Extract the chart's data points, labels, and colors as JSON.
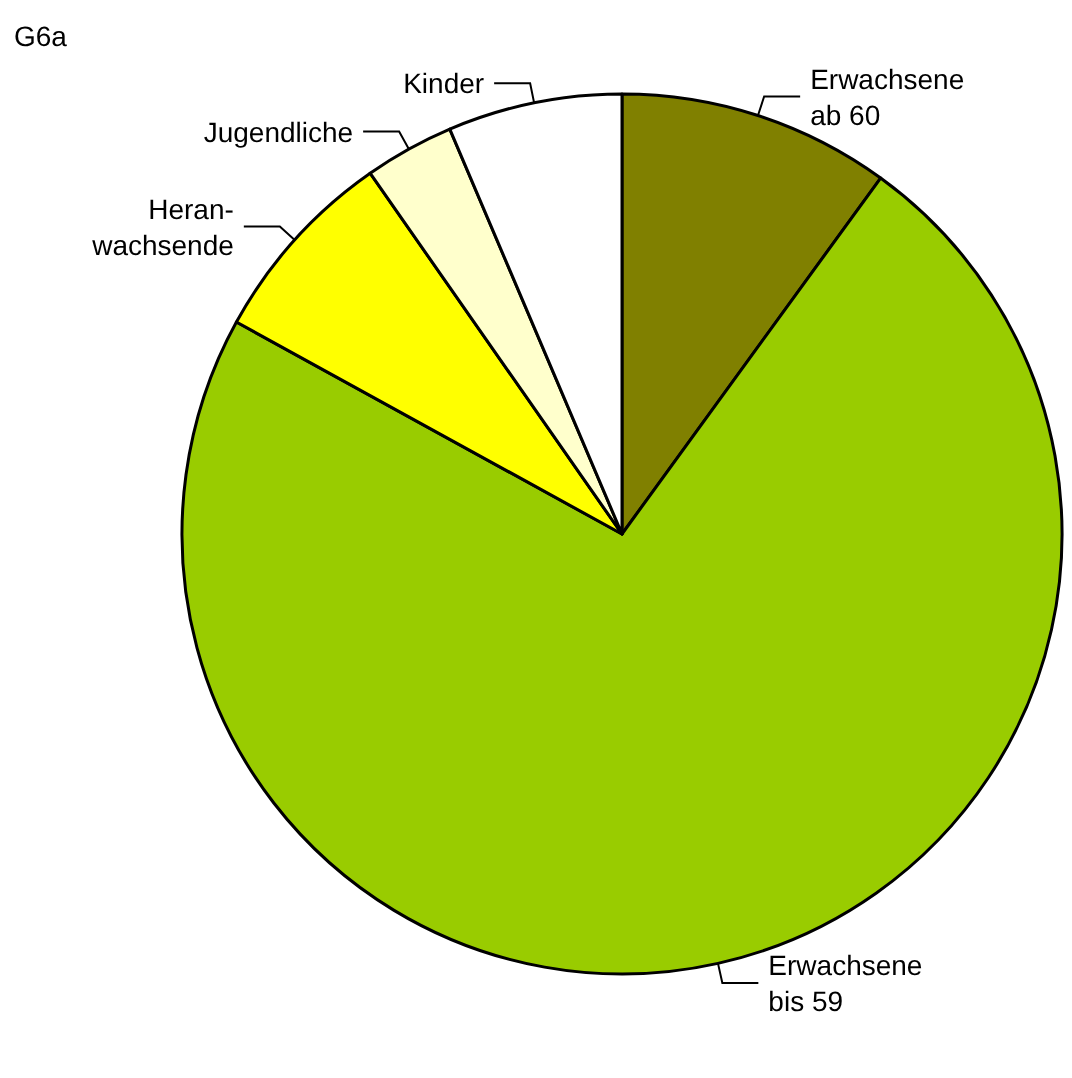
{
  "chart_data": {
    "type": "pie",
    "title": "G6a",
    "categories": [
      "Erwachsene\nab 60",
      "Erwachsene\nbis 59",
      "Heran-\nwachsende",
      "Jugendliche",
      "Kinder"
    ],
    "values": [
      10.0,
      73.0,
      7.3,
      3.3,
      6.4
    ],
    "colors": [
      "#808000",
      "#99cc00",
      "#ffff00",
      "#ffffcc",
      "#ffffff"
    ],
    "legend": false
  }
}
